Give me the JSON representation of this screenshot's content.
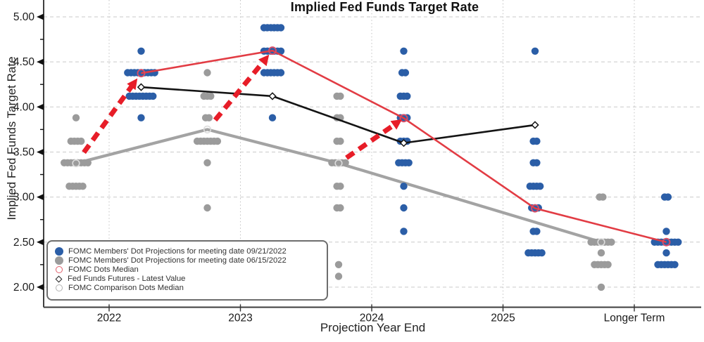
{
  "title": "Implied Fed Funds Target Rate",
  "legend": {
    "items": [
      {
        "label": "FOMC Members' Dot Projections for meeting date 09/21/2022",
        "marker": "filled-circle",
        "color": "#2b5ea7"
      },
      {
        "label": "FOMC Members' Dot Projections for meeting date 06/15/2022",
        "marker": "filled-circle",
        "color": "#9b9b9b"
      },
      {
        "label": "FOMC Dots Median",
        "marker": "open-circle",
        "color": "#e0606c"
      },
      {
        "label": "Fed Funds Futures - Latest Value",
        "marker": "open-diamond",
        "color": "#222222"
      },
      {
        "label": "FOMC Comparison Dots Median",
        "marker": "open-circle",
        "color": "#b2b2b2"
      }
    ]
  },
  "chart_data": {
    "type": "scatter",
    "title": "Implied Fed Funds Target Rate",
    "xlabel": "Projection Year End",
    "ylabel": "Implied Fed Funds Target Rate",
    "categories": [
      "2022",
      "2023",
      "2024",
      "2025",
      "Longer Term"
    ],
    "ylim": [
      1.78,
      5.19
    ],
    "yticks": [
      5.0,
      4.5,
      4.0,
      3.5,
      3.0,
      2.5,
      2.0
    ],
    "ytick_labels": [
      "5.00",
      "4.50",
      "4.00",
      "3.50",
      "3.00",
      "2.50",
      "2.00"
    ],
    "grid": true,
    "legend_position": "lower-left",
    "colors": {
      "blue_dots": "#2b5ea7",
      "gray_dots": "#9b9b9b",
      "red_line": "#e23c44",
      "red_median_ring": "#d94d66",
      "arrow_red": "#e71d28",
      "black_line": "#141414",
      "gray_line": "#a3a3a3",
      "gray_median_ring": "#dcdcdc"
    },
    "series": [
      {
        "name": "FOMC Members' Dot Projections for meeting date 09/21/2022",
        "kind": "dot-clusters",
        "clusters": {
          "2022": [
            [
              4.62,
              1
            ],
            [
              4.38,
              9
            ],
            [
              4.12,
              8
            ],
            [
              3.88,
              1
            ]
          ],
          "2023": [
            [
              4.88,
              6
            ],
            [
              4.62,
              6
            ],
            [
              4.38,
              6
            ],
            [
              3.88,
              1
            ]
          ],
          "2024": [
            [
              4.62,
              1
            ],
            [
              4.38,
              2
            ],
            [
              4.12,
              3
            ],
            [
              3.88,
              3
            ],
            [
              3.62,
              3
            ],
            [
              3.38,
              4
            ],
            [
              3.12,
              1
            ],
            [
              2.88,
              1
            ],
            [
              2.62,
              1
            ]
          ],
          "2025": [
            [
              4.62,
              1
            ],
            [
              3.62,
              2
            ],
            [
              3.38,
              2
            ],
            [
              3.12,
              4
            ],
            [
              2.88,
              3
            ],
            [
              2.62,
              2
            ],
            [
              2.38,
              5
            ]
          ],
          "Longer Term": [
            [
              3.0,
              2
            ],
            [
              2.62,
              1
            ],
            [
              2.5,
              8
            ],
            [
              2.38,
              1
            ],
            [
              2.25,
              6
            ]
          ]
        }
      },
      {
        "name": "FOMC Members' Dot Projections for meeting date 06/15/2022",
        "kind": "dot-clusters",
        "clusters": {
          "2022": [
            [
              3.88,
              1
            ],
            [
              3.62,
              4
            ],
            [
              3.38,
              8
            ],
            [
              3.12,
              5
            ]
          ],
          "2023": [
            [
              4.38,
              1
            ],
            [
              4.12,
              3
            ],
            [
              3.88,
              2
            ],
            [
              3.62,
              7
            ],
            [
              3.38,
              1
            ],
            [
              2.88,
              1
            ]
          ],
          "2024": [
            [
              4.12,
              2
            ],
            [
              3.88,
              2
            ],
            [
              3.62,
              2
            ],
            [
              3.38,
              5
            ],
            [
              3.12,
              2
            ],
            [
              2.88,
              2
            ],
            [
              2.25,
              1
            ],
            [
              2.12,
              1
            ]
          ],
          "2025": [],
          "Longer Term": [
            [
              3.0,
              2
            ],
            [
              2.5,
              7
            ],
            [
              2.38,
              1
            ],
            [
              2.25,
              5
            ],
            [
              2.0,
              1
            ]
          ]
        }
      },
      {
        "name": "FOMC Dots Median",
        "kind": "line-with-open-circles",
        "points": {
          "2022": 4.375,
          "2023": 4.625,
          "2024": 3.875,
          "2025": 2.875,
          "Longer Term": 2.5
        }
      },
      {
        "name": "Fed Funds Futures - Latest Value",
        "kind": "line-with-open-diamonds",
        "points": {
          "2022": 4.22,
          "2023": 4.12,
          "2024": 3.6,
          "2025": 3.8
        }
      },
      {
        "name": "FOMC Comparison Dots Median",
        "kind": "line-with-open-circles",
        "points": {
          "2022": 3.375,
          "2023": 3.75,
          "2024": 3.375,
          "Longer Term": 2.5
        }
      }
    ],
    "annotations": {
      "arrows": [
        {
          "category": "2022",
          "from_value": 3.375,
          "to_value": 4.375
        },
        {
          "category": "2023",
          "from_value": 3.75,
          "to_value": 4.625
        },
        {
          "category": "2024",
          "from_value": 3.375,
          "to_value": 3.875
        }
      ]
    }
  }
}
